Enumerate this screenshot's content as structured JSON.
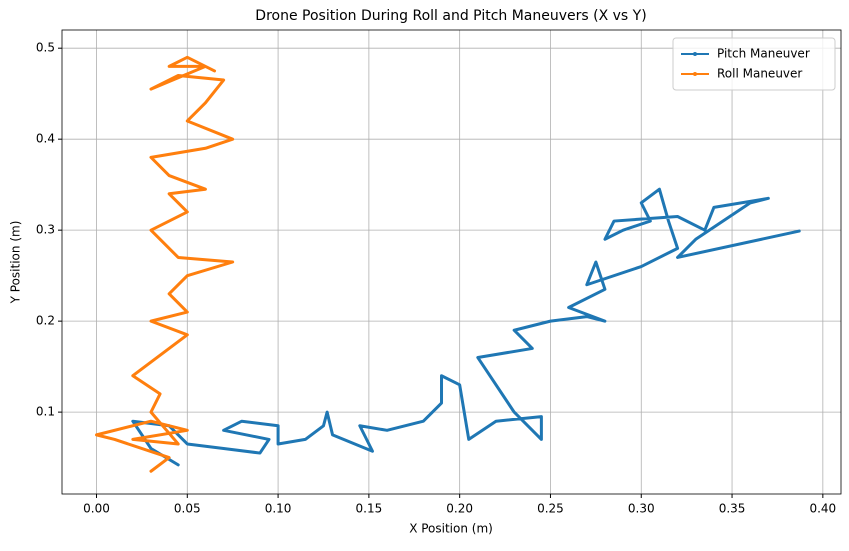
{
  "chart_data": {
    "type": "line",
    "title": "Drone Position During Roll and Pitch Maneuvers (X vs Y)",
    "x_label": "X Position (m)",
    "y_label": "Y Position (m)",
    "xlim": [
      -0.019,
      0.41
    ],
    "ylim": [
      0.01,
      0.52
    ],
    "xticks": [
      {
        "value": 0,
        "label": "0.00"
      },
      {
        "value": 0.05,
        "label": "0.05"
      },
      {
        "value": 0.1,
        "label": "0.10"
      },
      {
        "value": 0.15,
        "label": "0.15"
      },
      {
        "value": 0.2,
        "label": "0.20"
      },
      {
        "value": 0.25,
        "label": "0.25"
      },
      {
        "value": 0.3,
        "label": "0.30"
      },
      {
        "value": 0.35,
        "label": "0.35"
      },
      {
        "value": 0.4,
        "label": "0.40"
      }
    ],
    "yticks": [
      0.1,
      0.2,
      0.3,
      0.4,
      0.5
    ],
    "grid": true,
    "legend": "upper right",
    "series": [
      {
        "name": "Pitch Maneuver",
        "color": "#1f77b4",
        "x": [
          0.045,
          0.03,
          0.02,
          0.04,
          0.05,
          0.07,
          0.09,
          0.095,
          0.07,
          0.08,
          0.1,
          0.1,
          0.115,
          0.125,
          0.127,
          0.13,
          0.152,
          0.145,
          0.16,
          0.18,
          0.19,
          0.19,
          0.2,
          0.205,
          0.22,
          0.245,
          0.245,
          0.23,
          0.21,
          0.24,
          0.23,
          0.25,
          0.27,
          0.28,
          0.26,
          0.28,
          0.275,
          0.27,
          0.3,
          0.32,
          0.315,
          0.31,
          0.3,
          0.305,
          0.29,
          0.28,
          0.285,
          0.32,
          0.335,
          0.34,
          0.37,
          0.36,
          0.33,
          0.32,
          0.387
        ],
        "values": [
          0.042,
          0.06,
          0.09,
          0.085,
          0.065,
          0.06,
          0.055,
          0.07,
          0.08,
          0.09,
          0.085,
          0.065,
          0.07,
          0.085,
          0.1,
          0.075,
          0.057,
          0.085,
          0.08,
          0.09,
          0.11,
          0.14,
          0.13,
          0.07,
          0.09,
          0.095,
          0.07,
          0.1,
          0.16,
          0.17,
          0.19,
          0.2,
          0.205,
          0.2,
          0.215,
          0.235,
          0.265,
          0.24,
          0.26,
          0.28,
          0.31,
          0.345,
          0.33,
          0.31,
          0.3,
          0.29,
          0.31,
          0.315,
          0.3,
          0.325,
          0.335,
          0.33,
          0.29,
          0.27,
          0.299
        ]
      },
      {
        "name": "Roll Maneuver",
        "color": "#ff7f0e",
        "x": [
          0.03,
          0.04,
          0.01,
          0.0,
          0.03,
          0.05,
          0.02,
          0.045,
          0.03,
          0.035,
          0.02,
          0.04,
          0.05,
          0.03,
          0.05,
          0.04,
          0.05,
          0.075,
          0.045,
          0.03,
          0.05,
          0.04,
          0.06,
          0.04,
          0.03,
          0.06,
          0.075,
          0.05,
          0.06,
          0.07,
          0.045,
          0.03,
          0.06,
          0.04,
          0.05,
          0.065
        ],
        "values": [
          0.035,
          0.05,
          0.07,
          0.075,
          0.09,
          0.08,
          0.07,
          0.065,
          0.1,
          0.12,
          0.14,
          0.17,
          0.185,
          0.2,
          0.21,
          0.23,
          0.25,
          0.265,
          0.27,
          0.3,
          0.32,
          0.34,
          0.345,
          0.36,
          0.38,
          0.39,
          0.4,
          0.42,
          0.44,
          0.465,
          0.47,
          0.455,
          0.48,
          0.48,
          0.49,
          0.475
        ]
      }
    ]
  }
}
